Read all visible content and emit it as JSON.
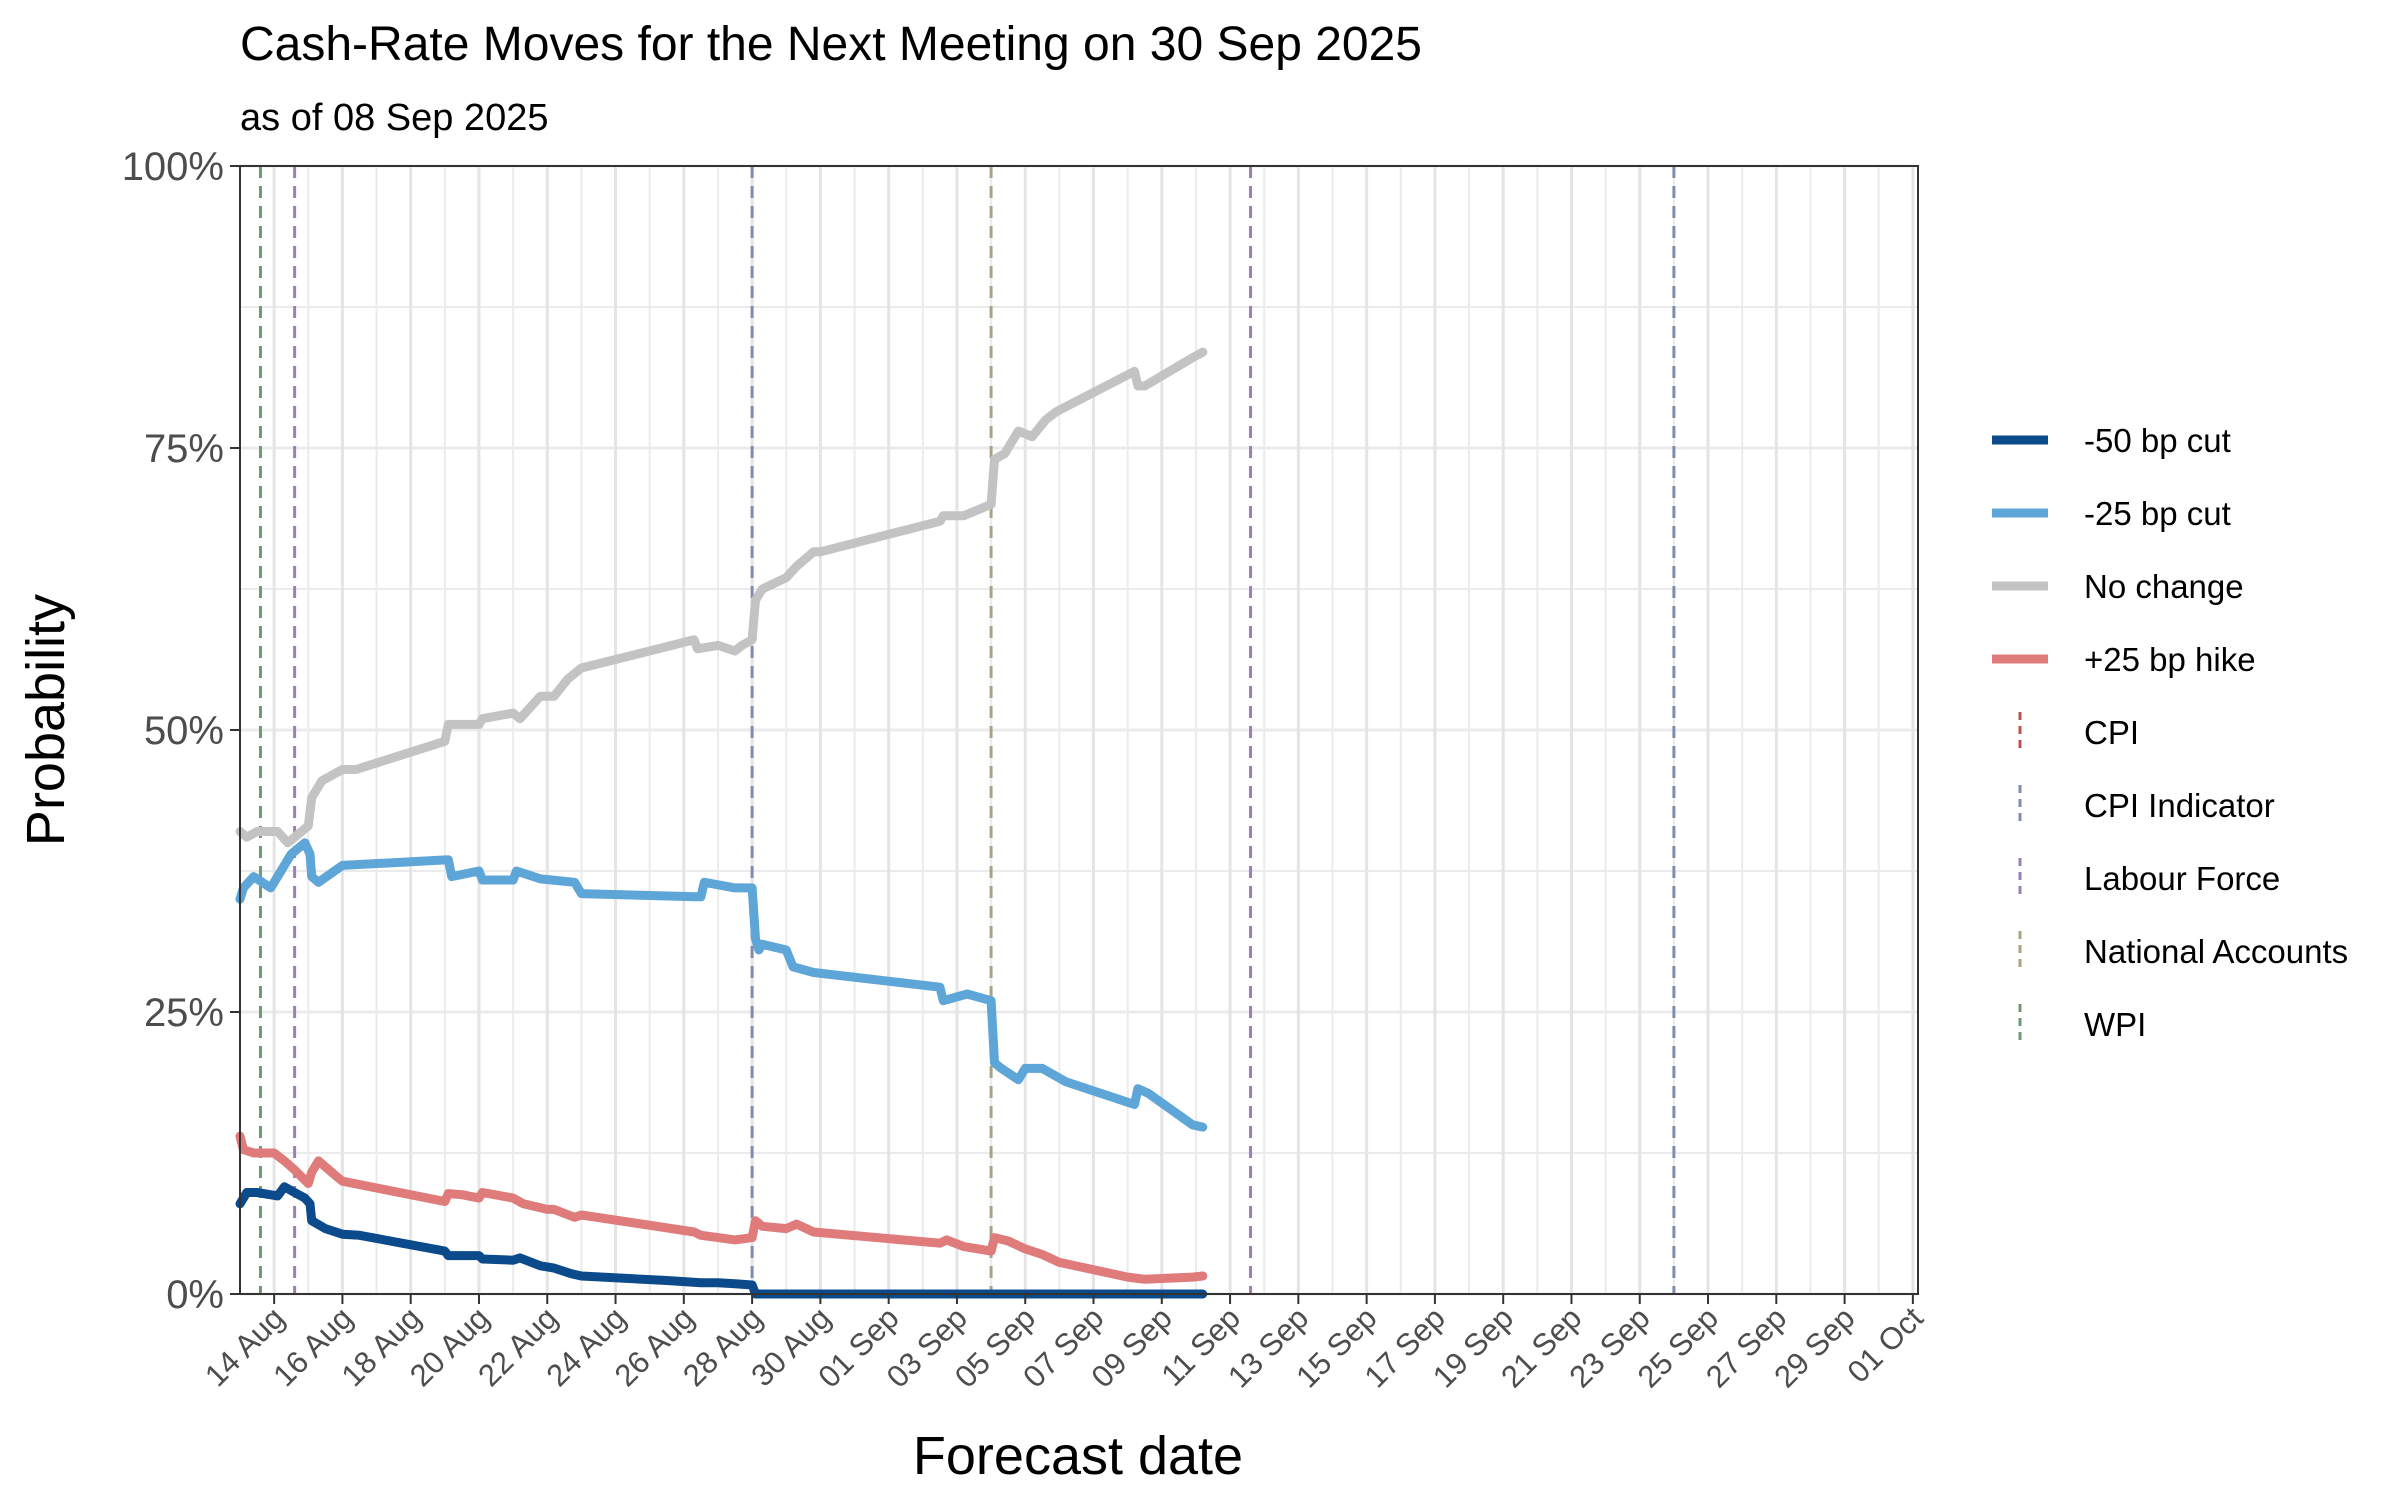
{
  "chart_data": {
    "type": "line",
    "title": "Cash-Rate Moves for the Next Meeting on 30 Sep 2025",
    "subtitle": "as of 08 Sep 2025",
    "xlabel": "Forecast date",
    "ylabel": "Probability",
    "xlim": [
      "2025-08-13",
      "2025-10-01"
    ],
    "ylim": [
      0,
      1
    ],
    "y_ticks": [
      0,
      0.25,
      0.5,
      0.75,
      1
    ],
    "y_tick_labels": [
      "0%",
      "25%",
      "50%",
      "75%",
      "100%"
    ],
    "x_tick_dates": [
      "2025-08-14",
      "2025-08-16",
      "2025-08-18",
      "2025-08-20",
      "2025-08-22",
      "2025-08-24",
      "2025-08-26",
      "2025-08-28",
      "2025-08-30",
      "2025-09-01",
      "2025-09-03",
      "2025-09-05",
      "2025-09-07",
      "2025-09-09",
      "2025-09-11",
      "2025-09-13",
      "2025-09-15",
      "2025-09-17",
      "2025-09-19",
      "2025-09-21",
      "2025-09-23",
      "2025-09-25",
      "2025-09-27",
      "2025-09-29",
      "2025-10-01"
    ],
    "x_tick_labels": [
      "14 Aug",
      "16 Aug",
      "18 Aug",
      "20 Aug",
      "22 Aug",
      "24 Aug",
      "26 Aug",
      "28 Aug",
      "30 Aug",
      "01 Sep",
      "03 Sep",
      "05 Sep",
      "07 Sep",
      "09 Sep",
      "11 Sep",
      "13 Sep",
      "15 Sep",
      "17 Sep",
      "19 Sep",
      "21 Sep",
      "23 Sep",
      "25 Sep",
      "27 Sep",
      "29 Sep",
      "01 Oct"
    ],
    "grid": true,
    "legend_position": "right",
    "series": [
      {
        "name": "-50 bp cut",
        "color": "#0b4a8b",
        "points": [
          [
            "2025-08-13",
            0.08
          ],
          [
            "2025-08-13.2",
            0.09
          ],
          [
            "2025-08-13.5",
            0.09
          ],
          [
            "2025-08-14.1",
            0.087
          ],
          [
            "2025-08-14.3",
            0.095
          ],
          [
            "2025-08-14.6",
            0.09
          ],
          [
            "2025-08-14.9",
            0.085
          ],
          [
            "2025-08-15.05",
            0.08
          ],
          [
            "2025-08-15.1",
            0.065
          ],
          [
            "2025-08-15.5",
            0.058
          ],
          [
            "2025-08-16",
            0.053
          ],
          [
            "2025-08-16.5",
            0.052
          ],
          [
            "2025-08-19",
            0.038
          ],
          [
            "2025-08-19.1",
            0.034
          ],
          [
            "2025-08-20",
            0.034
          ],
          [
            "2025-08-20.1",
            0.031
          ],
          [
            "2025-08-21",
            0.03
          ],
          [
            "2025-08-21.2",
            0.032
          ],
          [
            "2025-08-21.8",
            0.025
          ],
          [
            "2025-08-22.2",
            0.023
          ],
          [
            "2025-08-22.7",
            0.018
          ],
          [
            "2025-08-23",
            0.016
          ],
          [
            "2025-08-25.5",
            0.012
          ],
          [
            "2025-08-26.5",
            0.01
          ],
          [
            "2025-08-27",
            0.01
          ],
          [
            "2025-08-27.5",
            0.009
          ],
          [
            "2025-08-28",
            0.008
          ],
          [
            "2025-08-28.1",
            0.0
          ],
          [
            "2025-09-10.2",
            0.0
          ]
        ]
      },
      {
        "name": "-25 bp cut",
        "color": "#5ea5d8",
        "points": [
          [
            "2025-08-13",
            0.35
          ],
          [
            "2025-08-13.1",
            0.36
          ],
          [
            "2025-08-13.4",
            0.37
          ],
          [
            "2025-08-13.9",
            0.36
          ],
          [
            "2025-08-14.2",
            0.375
          ],
          [
            "2025-08-14.5",
            0.39
          ],
          [
            "2025-08-14.9",
            0.4
          ],
          [
            "2025-08-15.05",
            0.39
          ],
          [
            "2025-08-15.1",
            0.37
          ],
          [
            "2025-08-15.3",
            0.365
          ],
          [
            "2025-08-16",
            0.38
          ],
          [
            "2025-08-19.1",
            0.385
          ],
          [
            "2025-08-19.2",
            0.37
          ],
          [
            "2025-08-20",
            0.375
          ],
          [
            "2025-08-20.1",
            0.367
          ],
          [
            "2025-08-21",
            0.367
          ],
          [
            "2025-08-21.1",
            0.375
          ],
          [
            "2025-08-21.8",
            0.368
          ],
          [
            "2025-08-22.8",
            0.365
          ],
          [
            "2025-08-23",
            0.355
          ],
          [
            "2025-08-26.5",
            0.352
          ],
          [
            "2025-08-26.6",
            0.365
          ],
          [
            "2025-08-27.5",
            0.36
          ],
          [
            "2025-08-28",
            0.36
          ],
          [
            "2025-08-28.1",
            0.315
          ],
          [
            "2025-08-28.2",
            0.305
          ],
          [
            "2025-08-28.3",
            0.31
          ],
          [
            "2025-08-29",
            0.305
          ],
          [
            "2025-08-29.2",
            0.29
          ],
          [
            "2025-08-29.8",
            0.285
          ],
          [
            "2025-09-02.5",
            0.272
          ],
          [
            "2025-09-02.6",
            0.26
          ],
          [
            "2025-09-03.3",
            0.266
          ],
          [
            "2025-09-04",
            0.26
          ],
          [
            "2025-09-04.1",
            0.205
          ],
          [
            "2025-09-04.3",
            0.2
          ],
          [
            "2025-09-04.8",
            0.19
          ],
          [
            "2025-09-05",
            0.2
          ],
          [
            "2025-09-05.5",
            0.2
          ],
          [
            "2025-09-06.2",
            0.188
          ],
          [
            "2025-09-08.2",
            0.168
          ],
          [
            "2025-09-08.3",
            0.182
          ],
          [
            "2025-09-08.6",
            0.178
          ],
          [
            "2025-09-09.9",
            0.15
          ],
          [
            "2025-09-10.2",
            0.148
          ]
        ]
      },
      {
        "name": "No change",
        "color": "#c3c3c3",
        "points": [
          [
            "2025-08-13",
            0.41
          ],
          [
            "2025-08-13.2",
            0.405
          ],
          [
            "2025-08-13.5",
            0.41
          ],
          [
            "2025-08-14.1",
            0.41
          ],
          [
            "2025-08-14.4",
            0.4
          ],
          [
            "2025-08-15",
            0.415
          ],
          [
            "2025-08-15.1",
            0.44
          ],
          [
            "2025-08-15.4",
            0.455
          ],
          [
            "2025-08-16",
            0.465
          ],
          [
            "2025-08-16.4",
            0.465
          ],
          [
            "2025-08-19",
            0.49
          ],
          [
            "2025-08-19.1",
            0.505
          ],
          [
            "2025-08-20",
            0.505
          ],
          [
            "2025-08-20.1",
            0.51
          ],
          [
            "2025-08-21",
            0.515
          ],
          [
            "2025-08-21.2",
            0.51
          ],
          [
            "2025-08-21.8",
            0.53
          ],
          [
            "2025-08-22.2",
            0.53
          ],
          [
            "2025-08-22.6",
            0.545
          ],
          [
            "2025-08-23",
            0.555
          ],
          [
            "2025-08-26.3",
            0.58
          ],
          [
            "2025-08-26.4",
            0.572
          ],
          [
            "2025-08-27",
            0.575
          ],
          [
            "2025-08-27.5",
            0.57
          ],
          [
            "2025-08-27.7",
            0.575
          ],
          [
            "2025-08-28",
            0.58
          ],
          [
            "2025-08-28.1",
            0.615
          ],
          [
            "2025-08-28.3",
            0.625
          ],
          [
            "2025-08-29",
            0.635
          ],
          [
            "2025-08-29.3",
            0.645
          ],
          [
            "2025-08-29.8",
            0.658
          ],
          [
            "2025-08-30",
            0.658
          ],
          [
            "2025-09-02.5",
            0.685
          ],
          [
            "2025-09-02.6",
            0.69
          ],
          [
            "2025-09-03.2",
            0.69
          ],
          [
            "2025-09-04",
            0.7
          ],
          [
            "2025-09-04.1",
            0.74
          ],
          [
            "2025-09-04.4",
            0.745
          ],
          [
            "2025-09-04.8",
            0.765
          ],
          [
            "2025-09-05.2",
            0.76
          ],
          [
            "2025-09-05.6",
            0.775
          ],
          [
            "2025-09-05.9",
            0.782
          ],
          [
            "2025-09-08.2",
            0.818
          ],
          [
            "2025-09-08.3",
            0.805
          ],
          [
            "2025-09-08.5",
            0.805
          ],
          [
            "2025-09-09.9",
            0.83
          ],
          [
            "2025-09-10.2",
            0.835
          ]
        ]
      },
      {
        "name": "+25 bp hike",
        "color": "#e07b7b",
        "points": [
          [
            "2025-08-13",
            0.14
          ],
          [
            "2025-08-13.1",
            0.128
          ],
          [
            "2025-08-13.4",
            0.125
          ],
          [
            "2025-08-14",
            0.125
          ],
          [
            "2025-08-14.3",
            0.118
          ],
          [
            "2025-08-14.6",
            0.11
          ],
          [
            "2025-08-15",
            0.098
          ],
          [
            "2025-08-15.1",
            0.108
          ],
          [
            "2025-08-15.3",
            0.118
          ],
          [
            "2025-08-15.8",
            0.105
          ],
          [
            "2025-08-16",
            0.1
          ],
          [
            "2025-08-19",
            0.082
          ],
          [
            "2025-08-19.1",
            0.089
          ],
          [
            "2025-08-19.5",
            0.088
          ],
          [
            "2025-08-20",
            0.085
          ],
          [
            "2025-08-20.1",
            0.09
          ],
          [
            "2025-08-21",
            0.085
          ],
          [
            "2025-08-21.3",
            0.08
          ],
          [
            "2025-08-22",
            0.075
          ],
          [
            "2025-08-22.2",
            0.075
          ],
          [
            "2025-08-22.8",
            0.068
          ],
          [
            "2025-08-23",
            0.07
          ],
          [
            "2025-08-26.3",
            0.055
          ],
          [
            "2025-08-26.5",
            0.052
          ],
          [
            "2025-08-27",
            0.05
          ],
          [
            "2025-08-27.5",
            0.048
          ],
          [
            "2025-08-28",
            0.05
          ],
          [
            "2025-08-28.1",
            0.065
          ],
          [
            "2025-08-28.3",
            0.06
          ],
          [
            "2025-08-29",
            0.058
          ],
          [
            "2025-08-29.3",
            0.062
          ],
          [
            "2025-08-29.8",
            0.055
          ],
          [
            "2025-09-02.5",
            0.045
          ],
          [
            "2025-09-02.7",
            0.048
          ],
          [
            "2025-09-03.2",
            0.042
          ],
          [
            "2025-09-04",
            0.038
          ],
          [
            "2025-09-04.1",
            0.05
          ],
          [
            "2025-09-04.5",
            0.047
          ],
          [
            "2025-09-05",
            0.04
          ],
          [
            "2025-09-05.5",
            0.035
          ],
          [
            "2025-09-06",
            0.028
          ],
          [
            "2025-09-08",
            0.015
          ],
          [
            "2025-09-08.5",
            0.013
          ],
          [
            "2025-09-09.9",
            0.015
          ],
          [
            "2025-09-10.2",
            0.016
          ]
        ]
      }
    ],
    "events": [
      {
        "name": "CPI",
        "color": "#c0504d",
        "dates": []
      },
      {
        "name": "CPI Indicator",
        "color": "#7f8cb0",
        "dates": [
          "2025-08-28",
          "2025-09-24"
        ]
      },
      {
        "name": "Labour Force",
        "color": "#9b7fb6",
        "dates": [
          "2025-08-14.6",
          "2025-09-11.6"
        ]
      },
      {
        "name": "National Accounts",
        "color": "#a9a383",
        "dates": [
          "2025-09-04"
        ]
      },
      {
        "name": "WPI",
        "color": "#6f9a74",
        "dates": [
          "2025-08-13.6"
        ]
      }
    ]
  }
}
